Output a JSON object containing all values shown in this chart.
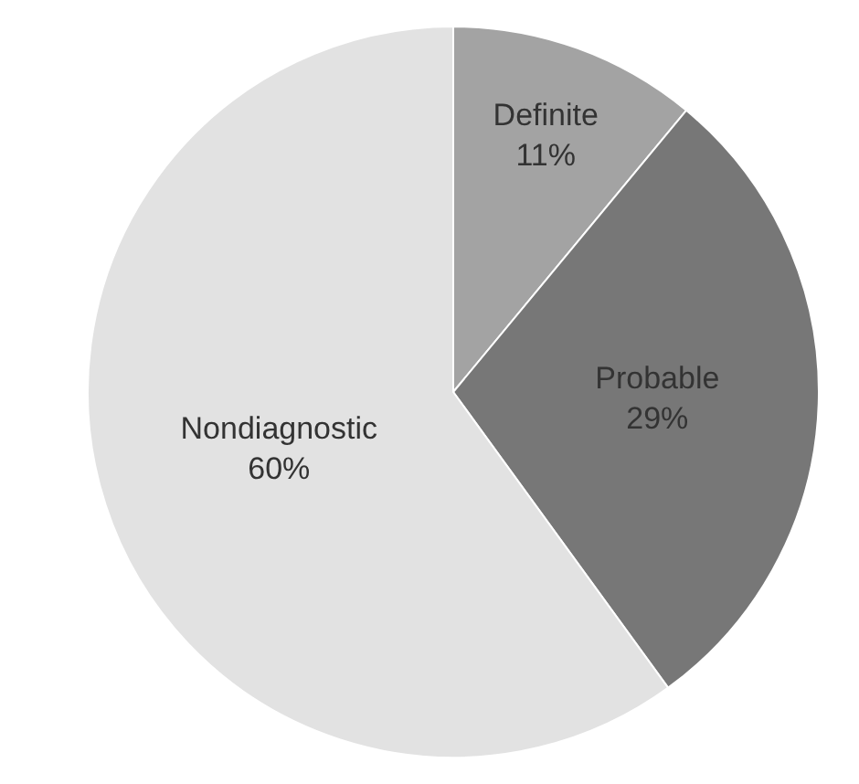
{
  "chart_data": {
    "type": "pie",
    "categories": [
      "Definite",
      "Probable",
      "Nondiagnostic"
    ],
    "values": [
      11,
      29,
      60
    ],
    "colors": [
      "#a3a3a3",
      "#777777",
      "#e2e2e2"
    ],
    "value_labels": [
      "11%",
      "29%",
      "60%"
    ]
  }
}
